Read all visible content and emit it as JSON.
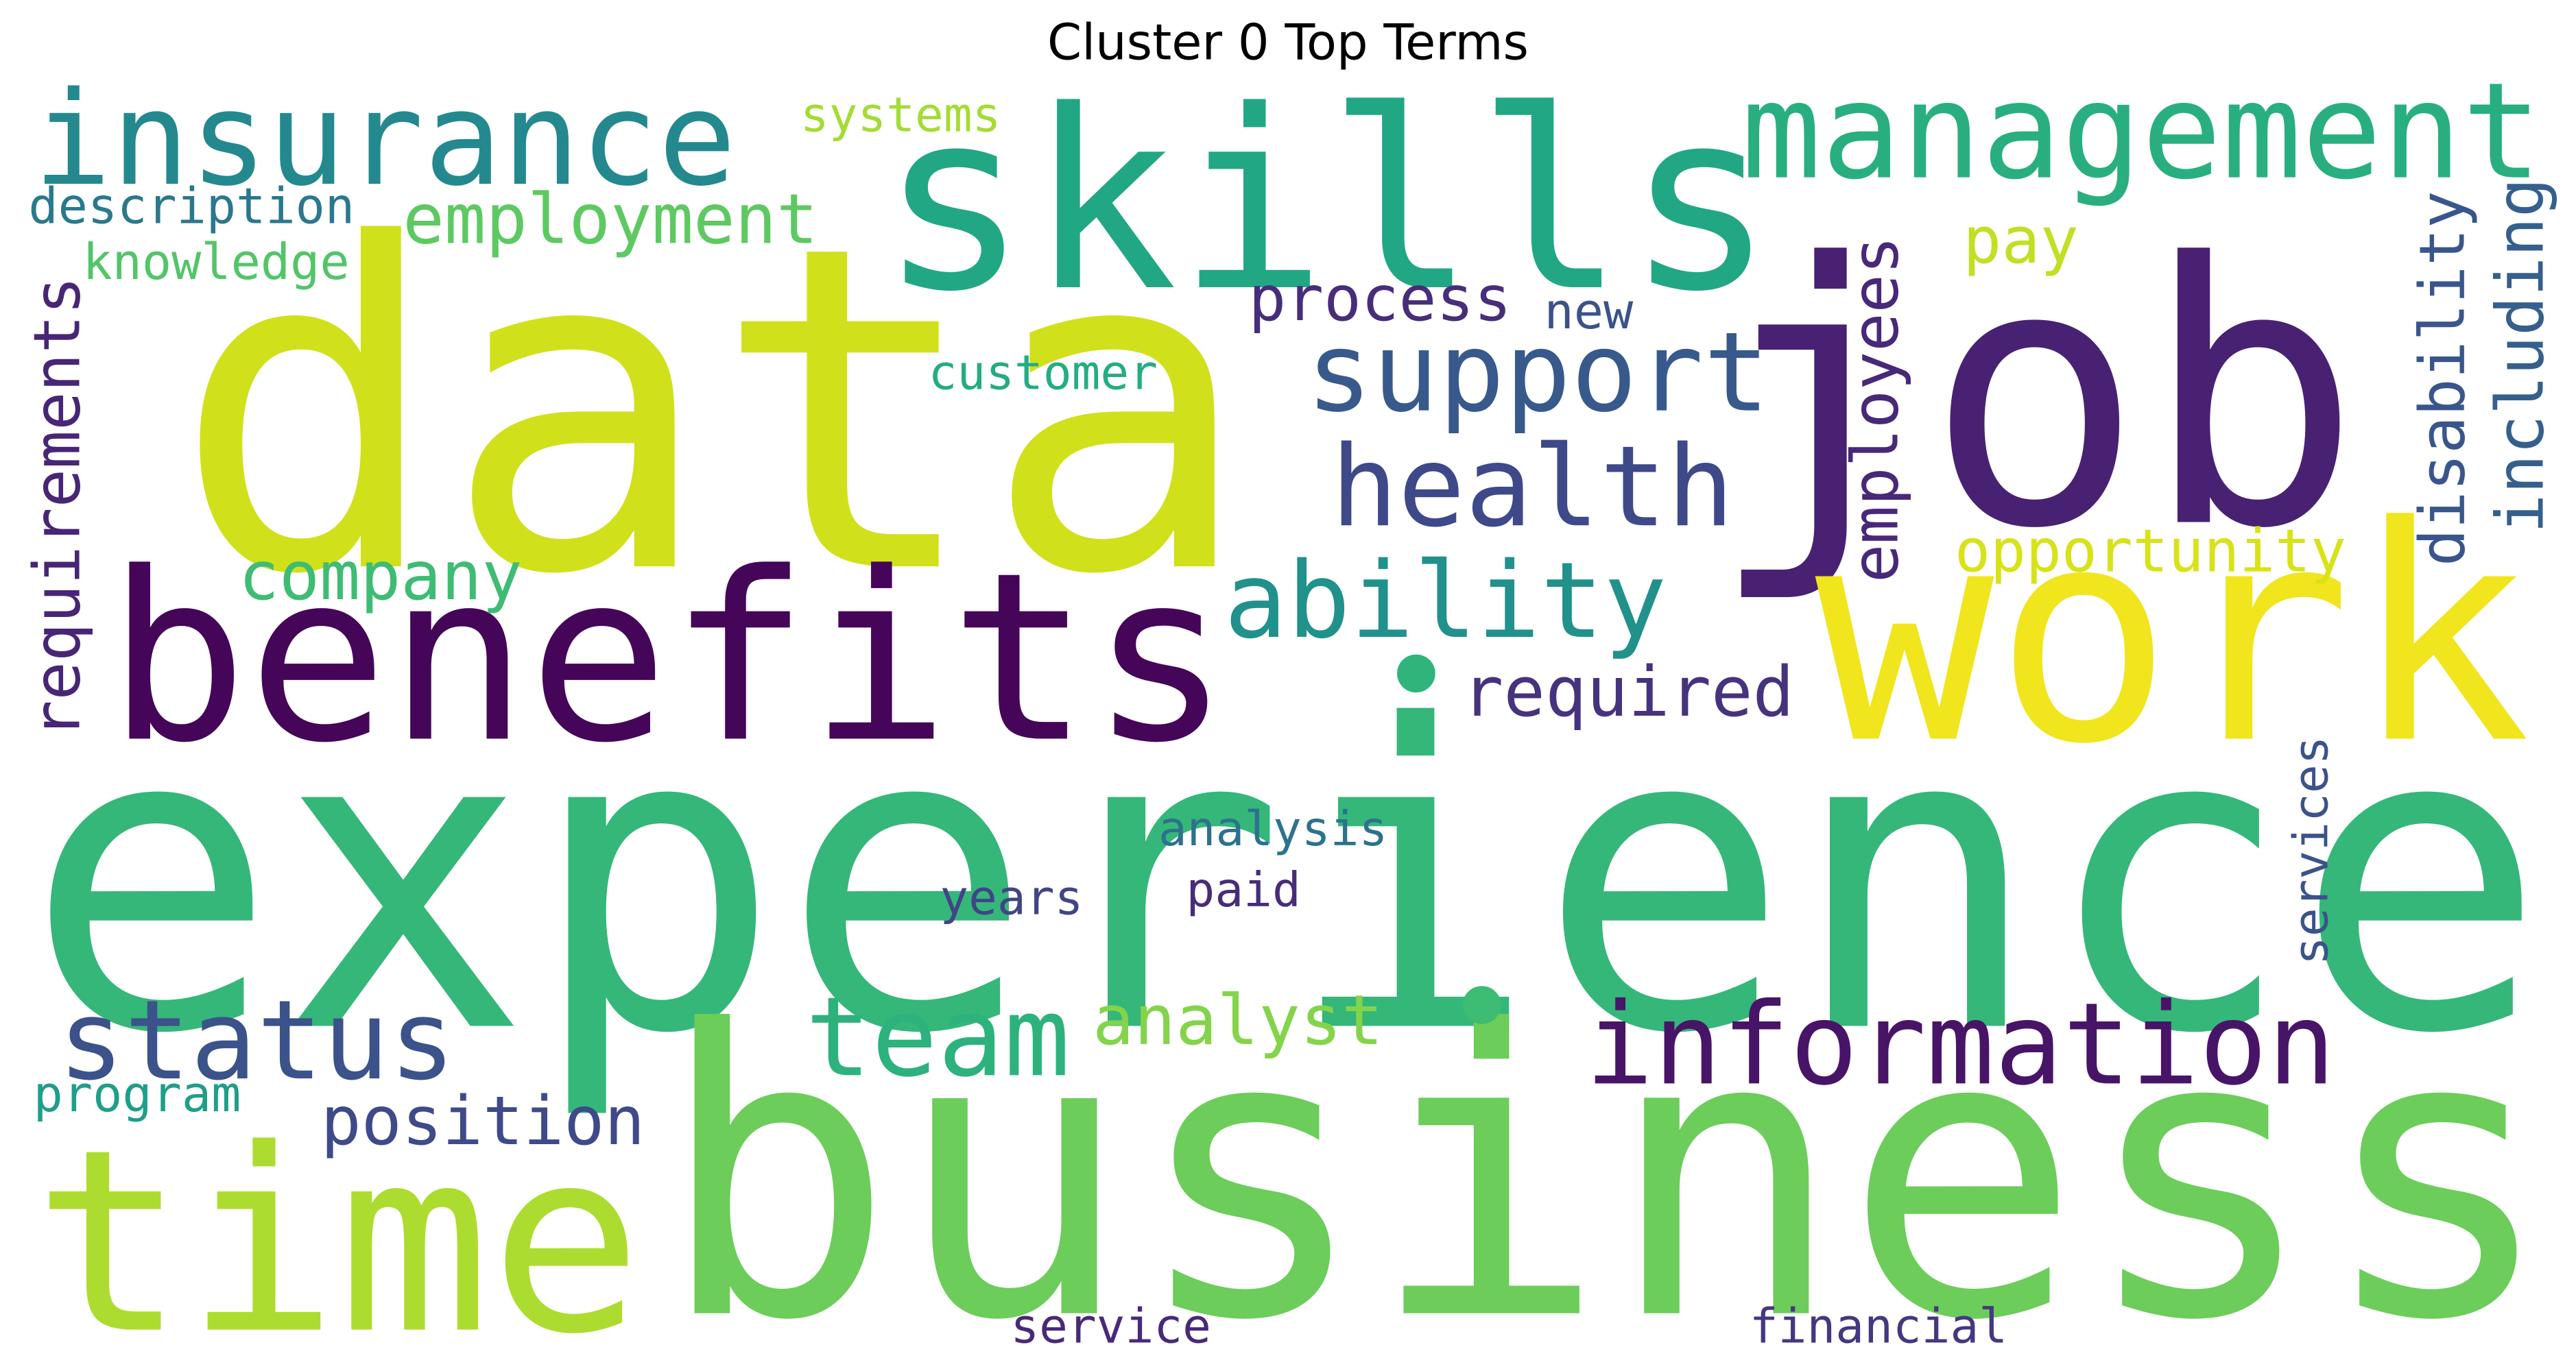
{
  "title": "Cluster 0 Top Terms",
  "words": [
    "experience",
    "data",
    "business",
    "job",
    "skills",
    "benefits",
    "work",
    "time",
    "insurance",
    "management",
    "support",
    "health",
    "ability",
    "information",
    "status",
    "team",
    "employment",
    "company",
    "required",
    "process",
    "opportunity",
    "analyst",
    "position",
    "pay",
    "systems",
    "description",
    "knowledge",
    "customer",
    "new",
    "analysis",
    "years",
    "paid",
    "program",
    "service",
    "financial",
    "requirements",
    "employees",
    "disability",
    "including",
    "services",
    "•",
    "•"
  ]
}
